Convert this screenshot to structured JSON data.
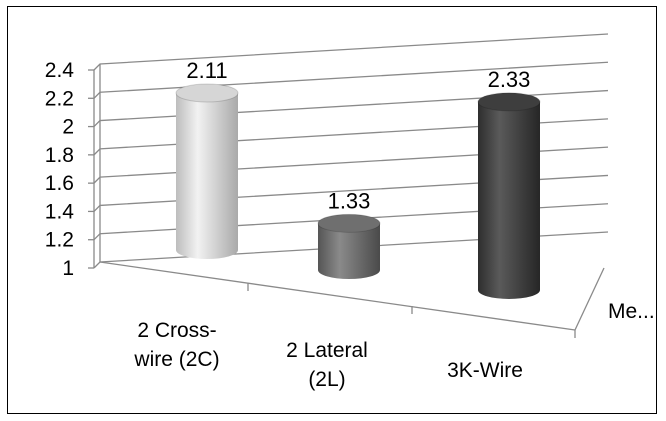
{
  "chart_data": {
    "type": "bar",
    "style": "3d-cylinder",
    "categories": [
      {
        "lines": [
          "2 Cross-",
          "wire (2C)"
        ]
      },
      {
        "lines": [
          "2 Lateral",
          "(2L)"
        ]
      },
      {
        "lines": [
          "3K-Wire"
        ]
      }
    ],
    "series": [
      {
        "name": "Me...",
        "values": [
          2.11,
          1.33,
          2.33
        ],
        "labels": [
          "2.11",
          "1.33",
          "2.33"
        ],
        "colors": [
          "#d6d6d6",
          "#6f6f6f",
          "#3e3e3e"
        ]
      }
    ],
    "yticks": [
      "1",
      "1.2",
      "1.4",
      "1.6",
      "1.8",
      "2",
      "2.2",
      "2.4"
    ],
    "ylim": [
      1,
      2.4
    ],
    "grid": true,
    "legend": "none"
  }
}
